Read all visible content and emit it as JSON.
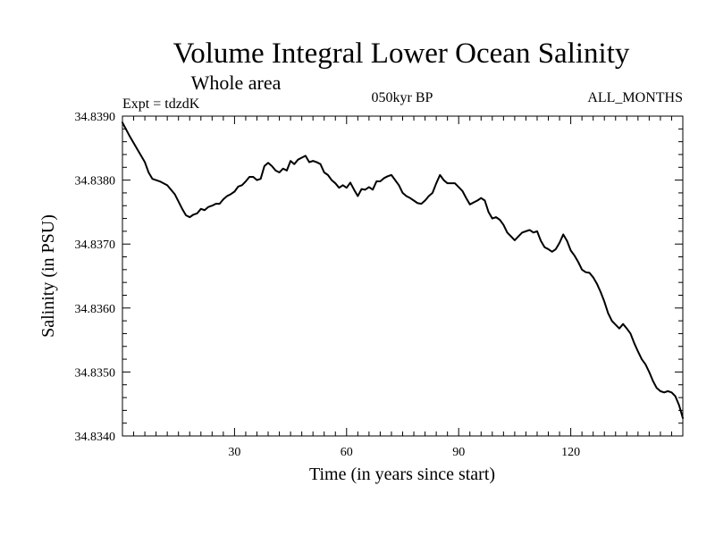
{
  "chart_data": {
    "type": "line",
    "title": "Volume Integral Lower Ocean Salinity",
    "subtitle": "Whole area",
    "experiment_label": "Expt = tdzdK",
    "period_label": "050kyr BP",
    "months_label": "ALL_MONTHS",
    "xlabel": "Time (in years since start)",
    "ylabel": "Salinity (in PSU)",
    "xlim": [
      0,
      150
    ],
    "ylim": [
      34.834,
      34.839
    ],
    "x_ticks": [
      30,
      60,
      90,
      120
    ],
    "x_tick_labels": [
      "30",
      "60",
      "90",
      "120"
    ],
    "y_ticks": [
      34.834,
      34.835,
      34.836,
      34.837,
      34.838,
      34.839
    ],
    "y_tick_labels": [
      "34.8340",
      "34.8350",
      "34.8360",
      "34.8370",
      "34.8380",
      "34.8390"
    ],
    "grid": false,
    "series": [
      {
        "name": "Salinity",
        "x": [
          0,
          2,
          4,
          6,
          7,
          8,
          10,
          12,
          14,
          16,
          17,
          18,
          19,
          20,
          21,
          22,
          23,
          24,
          25,
          26,
          27,
          28,
          29,
          30,
          31,
          32,
          33,
          34,
          35,
          36,
          37,
          38,
          39,
          40,
          41,
          42,
          43,
          44,
          45,
          46,
          47,
          48,
          49,
          50,
          51,
          52,
          53,
          54,
          55,
          56,
          57,
          58,
          59,
          60,
          61,
          62,
          63,
          64,
          65,
          66,
          67,
          68,
          69,
          70,
          71,
          72,
          73,
          74,
          75,
          76,
          77,
          78,
          79,
          80,
          81,
          82,
          83,
          84,
          85,
          86,
          87,
          88,
          89,
          90,
          91,
          92,
          93,
          94,
          95,
          96,
          97,
          98,
          99,
          100,
          101,
          102,
          103,
          104,
          105,
          106,
          107,
          108,
          109,
          110,
          111,
          112,
          113,
          114,
          115,
          116,
          117,
          118,
          119,
          120,
          121,
          122,
          123,
          124,
          125,
          126,
          127,
          128,
          129,
          130,
          131,
          132,
          133,
          134,
          135,
          136,
          137,
          138,
          139,
          140,
          141,
          142,
          143,
          144,
          145,
          146,
          147,
          148,
          149,
          150
        ],
        "values": [
          34.8389,
          34.83868,
          34.83848,
          34.83828,
          34.83812,
          34.83802,
          34.83798,
          34.83792,
          34.83778,
          34.83755,
          34.83745,
          34.83742,
          34.83746,
          34.83748,
          34.83755,
          34.83753,
          34.83758,
          34.8376,
          34.83763,
          34.83763,
          34.8377,
          34.83775,
          34.83778,
          34.83782,
          34.8379,
          34.83792,
          34.83798,
          34.83805,
          34.83805,
          34.838,
          34.83802,
          34.83822,
          34.83827,
          34.83822,
          34.83815,
          34.83812,
          34.83818,
          34.83815,
          34.8383,
          34.83825,
          34.83832,
          34.83835,
          34.83838,
          34.83828,
          34.8383,
          34.83828,
          34.83825,
          34.83812,
          34.83808,
          34.838,
          34.83795,
          34.83788,
          34.83792,
          34.83788,
          34.83796,
          34.83785,
          34.83775,
          34.83786,
          34.83785,
          34.83789,
          34.83785,
          34.83798,
          34.83798,
          34.83803,
          34.83806,
          34.83808,
          34.838,
          34.83792,
          34.8378,
          34.83775,
          34.83772,
          34.83768,
          34.83764,
          34.83763,
          34.83768,
          34.83775,
          34.8378,
          34.83795,
          34.83808,
          34.838,
          34.83795,
          34.83795,
          34.83795,
          34.83789,
          34.83783,
          34.83772,
          34.83762,
          34.83765,
          34.83768,
          34.83772,
          34.83768,
          34.8375,
          34.8374,
          34.83742,
          34.83738,
          34.8373,
          34.83718,
          34.83712,
          34.83706,
          34.83712,
          34.83718,
          34.8372,
          34.83722,
          34.83718,
          34.8372,
          34.83705,
          34.83695,
          34.83692,
          34.83688,
          34.83692,
          34.83702,
          34.83715,
          34.83705,
          34.8369,
          34.83682,
          34.83672,
          34.8366,
          34.83656,
          34.83655,
          34.83648,
          34.83638,
          34.83625,
          34.8361,
          34.83592,
          34.8358,
          34.83574,
          34.83568,
          34.83575,
          34.83568,
          34.8356,
          34.83545,
          34.83532,
          34.8352,
          34.83512,
          34.835,
          34.83486,
          34.83475,
          34.8347,
          34.83468,
          34.8347,
          34.83468,
          34.83462,
          34.83448,
          34.83428
        ]
      }
    ]
  }
}
